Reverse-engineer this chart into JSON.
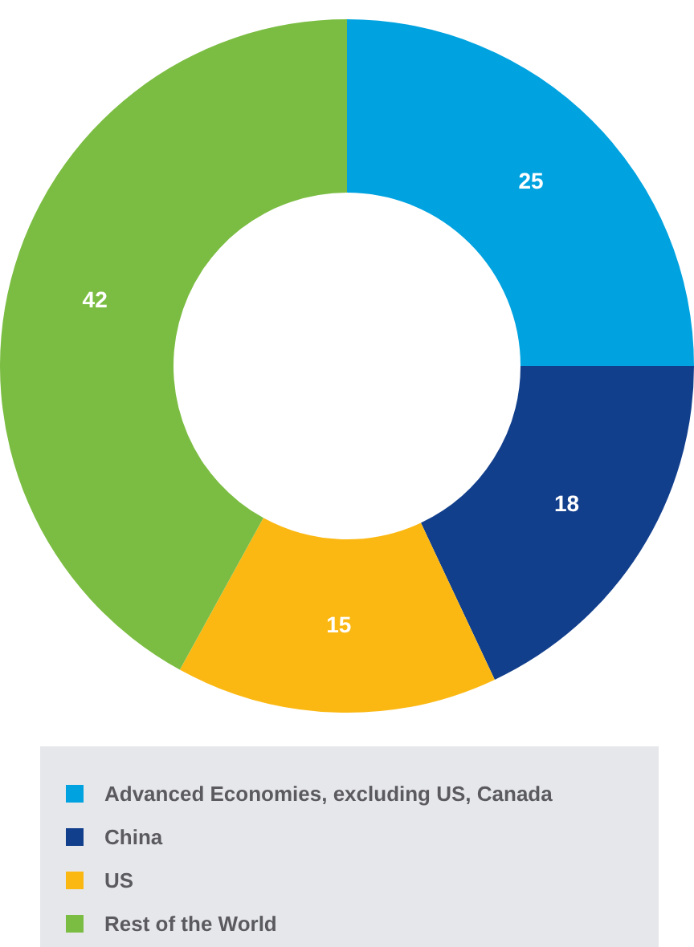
{
  "chart_data": {
    "type": "donut",
    "categories": [
      "Advanced Economies, excluding US, Canada",
      "China",
      "US",
      "Rest of the World"
    ],
    "values": [
      25,
      18,
      15,
      42
    ],
    "colors": [
      "#00a3e0",
      "#123f8c",
      "#fbb813",
      "#7bbd42"
    ],
    "data_labels": true,
    "legend": "bottom"
  }
}
